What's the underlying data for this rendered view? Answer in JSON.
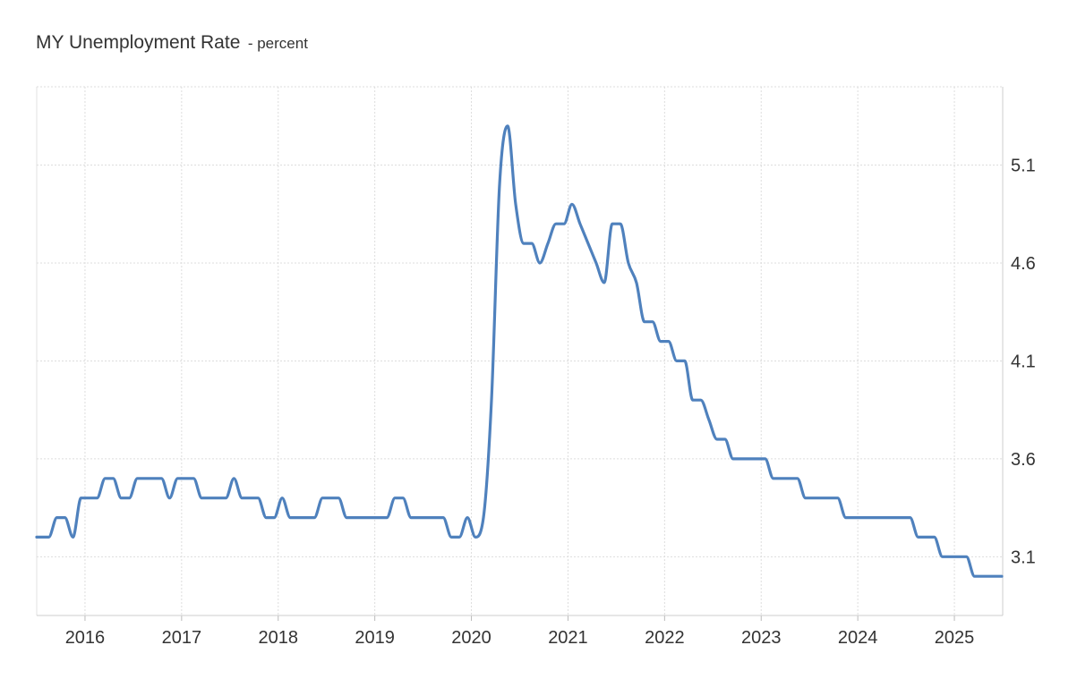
{
  "title": "MY Unemployment Rate",
  "subtitle": "- percent",
  "chart_data": {
    "type": "line",
    "title": "MY Unemployment Rate",
    "subtitle": "percent",
    "xlabel": "",
    "ylabel": "",
    "x_ticks": [
      "2016",
      "2017",
      "2018",
      "2019",
      "2020",
      "2021",
      "2022",
      "2023",
      "2024",
      "2025"
    ],
    "y_ticks": [
      3.1,
      3.6,
      4.1,
      4.6,
      5.1
    ],
    "xlim": [
      "2015-07",
      "2025-06"
    ],
    "ylim": [
      2.8,
      5.5
    ],
    "y_axis_side": "right",
    "grid": true,
    "color": "#4f81bd",
    "series": [
      {
        "name": "",
        "points": [
          [
            "2015-07",
            3.2
          ],
          [
            "2015-08",
            3.2
          ],
          [
            "2015-09",
            3.3
          ],
          [
            "2015-10",
            3.3
          ],
          [
            "2015-11",
            3.2
          ],
          [
            "2015-12",
            3.4
          ],
          [
            "2016-01",
            3.4
          ],
          [
            "2016-02",
            3.4
          ],
          [
            "2016-03",
            3.5
          ],
          [
            "2016-04",
            3.5
          ],
          [
            "2016-05",
            3.4
          ],
          [
            "2016-06",
            3.4
          ],
          [
            "2016-07",
            3.5
          ],
          [
            "2016-08",
            3.5
          ],
          [
            "2016-09",
            3.5
          ],
          [
            "2016-10",
            3.5
          ],
          [
            "2016-11",
            3.4
          ],
          [
            "2016-12",
            3.5
          ],
          [
            "2017-01",
            3.5
          ],
          [
            "2017-02",
            3.5
          ],
          [
            "2017-03",
            3.4
          ],
          [
            "2017-04",
            3.4
          ],
          [
            "2017-05",
            3.4
          ],
          [
            "2017-06",
            3.4
          ],
          [
            "2017-07",
            3.5
          ],
          [
            "2017-08",
            3.4
          ],
          [
            "2017-09",
            3.4
          ],
          [
            "2017-10",
            3.4
          ],
          [
            "2017-11",
            3.3
          ],
          [
            "2017-12",
            3.3
          ],
          [
            "2018-01",
            3.4
          ],
          [
            "2018-02",
            3.3
          ],
          [
            "2018-03",
            3.3
          ],
          [
            "2018-04",
            3.3
          ],
          [
            "2018-05",
            3.3
          ],
          [
            "2018-06",
            3.4
          ],
          [
            "2018-07",
            3.4
          ],
          [
            "2018-08",
            3.4
          ],
          [
            "2018-09",
            3.3
          ],
          [
            "2018-10",
            3.3
          ],
          [
            "2018-11",
            3.3
          ],
          [
            "2018-12",
            3.3
          ],
          [
            "2019-01",
            3.3
          ],
          [
            "2019-02",
            3.3
          ],
          [
            "2019-03",
            3.4
          ],
          [
            "2019-04",
            3.4
          ],
          [
            "2019-05",
            3.3
          ],
          [
            "2019-06",
            3.3
          ],
          [
            "2019-07",
            3.3
          ],
          [
            "2019-08",
            3.3
          ],
          [
            "2019-09",
            3.3
          ],
          [
            "2019-10",
            3.2
          ],
          [
            "2019-11",
            3.2
          ],
          [
            "2019-12",
            3.3
          ],
          [
            "2020-01",
            3.2
          ],
          [
            "2020-02",
            3.3
          ],
          [
            "2020-03",
            3.9
          ],
          [
            "2020-04",
            5.0
          ],
          [
            "2020-05",
            5.3
          ],
          [
            "2020-06",
            4.9
          ],
          [
            "2020-07",
            4.7
          ],
          [
            "2020-08",
            4.7
          ],
          [
            "2020-09",
            4.6
          ],
          [
            "2020-10",
            4.7
          ],
          [
            "2020-11",
            4.8
          ],
          [
            "2020-12",
            4.8
          ],
          [
            "2021-01",
            4.9
          ],
          [
            "2021-02",
            4.8
          ],
          [
            "2021-03",
            4.7
          ],
          [
            "2021-04",
            4.6
          ],
          [
            "2021-05",
            4.5
          ],
          [
            "2021-06",
            4.8
          ],
          [
            "2021-07",
            4.8
          ],
          [
            "2021-08",
            4.6
          ],
          [
            "2021-09",
            4.5
          ],
          [
            "2021-10",
            4.3
          ],
          [
            "2021-11",
            4.3
          ],
          [
            "2021-12",
            4.2
          ],
          [
            "2022-01",
            4.2
          ],
          [
            "2022-02",
            4.1
          ],
          [
            "2022-03",
            4.1
          ],
          [
            "2022-04",
            3.9
          ],
          [
            "2022-05",
            3.9
          ],
          [
            "2022-06",
            3.8
          ],
          [
            "2022-07",
            3.7
          ],
          [
            "2022-08",
            3.7
          ],
          [
            "2022-09",
            3.6
          ],
          [
            "2022-10",
            3.6
          ],
          [
            "2022-11",
            3.6
          ],
          [
            "2022-12",
            3.6
          ],
          [
            "2023-01",
            3.6
          ],
          [
            "2023-02",
            3.5
          ],
          [
            "2023-03",
            3.5
          ],
          [
            "2023-04",
            3.5
          ],
          [
            "2023-05",
            3.5
          ],
          [
            "2023-06",
            3.4
          ],
          [
            "2023-07",
            3.4
          ],
          [
            "2023-08",
            3.4
          ],
          [
            "2023-09",
            3.4
          ],
          [
            "2023-10",
            3.4
          ],
          [
            "2023-11",
            3.3
          ],
          [
            "2023-12",
            3.3
          ],
          [
            "2024-01",
            3.3
          ],
          [
            "2024-02",
            3.3
          ],
          [
            "2024-03",
            3.3
          ],
          [
            "2024-04",
            3.3
          ],
          [
            "2024-05",
            3.3
          ],
          [
            "2024-06",
            3.3
          ],
          [
            "2024-07",
            3.3
          ],
          [
            "2024-08",
            3.2
          ],
          [
            "2024-09",
            3.2
          ],
          [
            "2024-10",
            3.2
          ],
          [
            "2024-11",
            3.1
          ],
          [
            "2024-12",
            3.1
          ],
          [
            "2025-01",
            3.1
          ],
          [
            "2025-02",
            3.1
          ],
          [
            "2025-03",
            3.0
          ],
          [
            "2025-04",
            3.0
          ],
          [
            "2025-05",
            3.0
          ],
          [
            "2025-06",
            3.0
          ]
        ]
      }
    ]
  }
}
